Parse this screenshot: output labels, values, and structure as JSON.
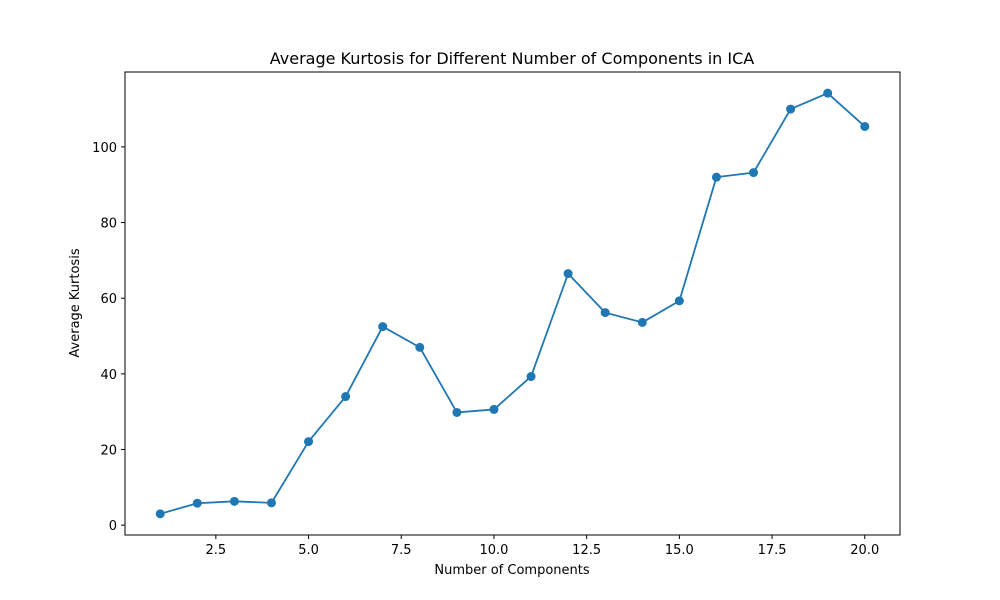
{
  "chart_data": {
    "type": "line",
    "title": "Average Kurtosis for Different Number of Components in ICA",
    "xlabel": "Number of Components",
    "ylabel": "Average Kurtosis",
    "x": [
      1,
      2,
      3,
      4,
      5,
      6,
      7,
      8,
      9,
      10,
      11,
      12,
      13,
      14,
      15,
      16,
      17,
      18,
      19,
      20
    ],
    "series": [
      {
        "values": [
          3.0,
          5.8,
          6.3,
          5.9,
          22.1,
          34.0,
          52.5,
          47.0,
          29.8,
          30.6,
          39.3,
          66.5,
          56.2,
          53.6,
          59.3,
          92.0,
          93.2,
          110.0,
          114.2,
          105.4
        ],
        "color": "#1f77b4",
        "marker": "circle"
      }
    ],
    "xlim": [
      0.05,
      20.95
    ],
    "ylim": [
      -2.6,
      119.8
    ],
    "xticks": [
      "2.5",
      "5.0",
      "7.5",
      "10.0",
      "12.5",
      "15.0",
      "17.5",
      "20.0"
    ],
    "yticks": [
      "0",
      "20",
      "40",
      "60",
      "80",
      "100"
    ],
    "grid": false,
    "legend": false
  }
}
